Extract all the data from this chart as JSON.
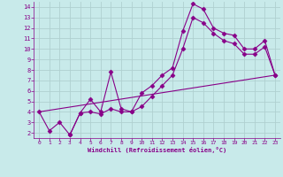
{
  "xlabel": "Windchill (Refroidissement éolien,°C)",
  "bg_color": "#c8eaea",
  "grid_color": "#b0d0d0",
  "line_color": "#880088",
  "xlim": [
    -0.5,
    23.5
  ],
  "ylim": [
    1.5,
    14.5
  ],
  "xticks": [
    0,
    1,
    2,
    3,
    4,
    5,
    6,
    7,
    8,
    9,
    10,
    11,
    12,
    13,
    14,
    15,
    16,
    17,
    18,
    19,
    20,
    21,
    22,
    23
  ],
  "yticks": [
    2,
    3,
    4,
    5,
    6,
    7,
    8,
    9,
    10,
    11,
    12,
    13,
    14
  ],
  "line1_x": [
    0,
    1,
    2,
    3,
    4,
    5,
    6,
    7,
    8,
    9,
    10,
    11,
    12,
    13,
    14,
    15,
    16,
    17,
    18,
    19,
    20,
    21,
    22,
    23
  ],
  "line1_y": [
    4.0,
    2.2,
    3.0,
    1.8,
    3.9,
    5.2,
    4.0,
    7.8,
    4.3,
    4.0,
    5.8,
    6.5,
    7.5,
    8.2,
    11.7,
    14.3,
    13.8,
    12.0,
    11.5,
    11.3,
    10.0,
    10.0,
    10.8,
    7.5
  ],
  "line2_x": [
    3,
    4,
    5,
    6,
    7,
    8,
    9,
    10,
    11,
    12,
    13,
    14,
    15,
    16,
    17,
    18,
    19,
    20,
    21,
    22,
    23
  ],
  "line2_y": [
    1.8,
    3.9,
    4.0,
    3.8,
    4.3,
    4.0,
    4.0,
    4.5,
    5.5,
    6.5,
    7.5,
    10.0,
    13.0,
    12.5,
    11.5,
    10.8,
    10.5,
    9.5,
    9.5,
    10.2,
    7.5
  ],
  "line3_x": [
    0,
    23
  ],
  "line3_y": [
    4.0,
    7.5
  ],
  "marker": "D",
  "markersize": 2.5,
  "linewidth": 0.8
}
